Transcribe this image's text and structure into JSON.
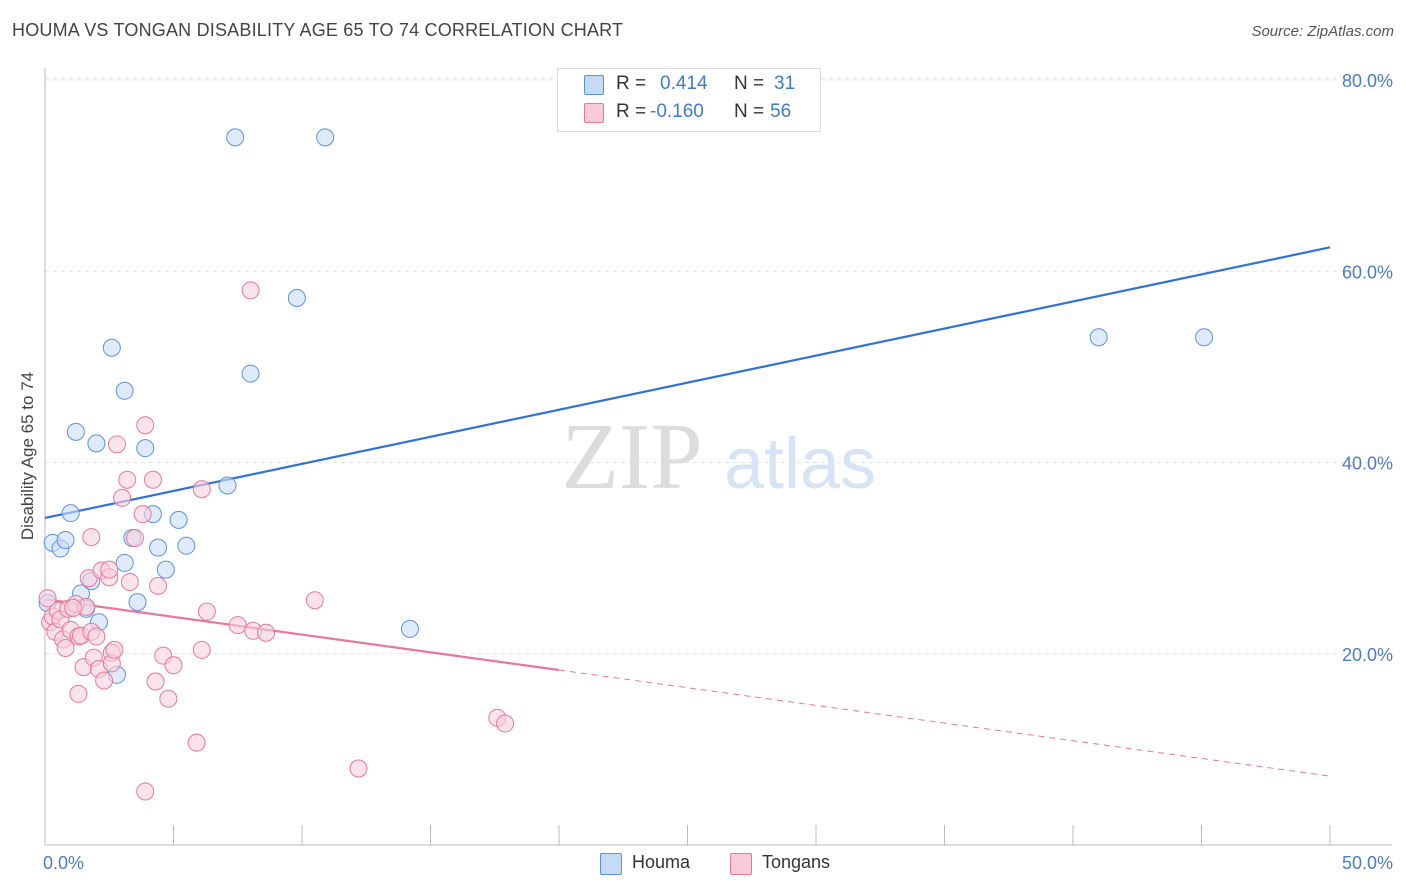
{
  "header": {
    "title": "HOUMA VS TONGAN DISABILITY AGE 65 TO 74 CORRELATION CHART",
    "source": "Source: ZipAtlas.com"
  },
  "watermark": {
    "zip": "ZIP",
    "atlas": "atlas"
  },
  "legend": {
    "rows": [
      {
        "r_label": "R =",
        "r_value": "0.414",
        "n_label": "N =",
        "n_value": "31",
        "color": "#a9c8f0"
      },
      {
        "r_label": "R =",
        "r_value": "-0.160",
        "n_label": "N =",
        "n_value": "56",
        "color": "#f6b7c9"
      }
    ]
  },
  "bottom_legend": {
    "houma": "Houma",
    "tongans": "Tongans"
  },
  "chart_data": {
    "type": "scatter",
    "title": "HOUMA VS TONGAN DISABILITY AGE 65 TO 74 CORRELATION CHART",
    "xlabel": "",
    "ylabel": "Disability Age 65 to 74",
    "xlim": [
      0,
      50
    ],
    "ylim": [
      0,
      80
    ],
    "x_tick_labels": [
      "0.0%",
      "50.0%"
    ],
    "y_ticks": [
      20,
      40,
      60,
      80
    ],
    "y_tick_labels": [
      "20.0%",
      "40.0%",
      "60.0%",
      "80.0%"
    ],
    "series": [
      {
        "name": "Houma",
        "color": "#5b93e0",
        "fill": "#c9ddf6",
        "points": [
          [
            0.1,
            25.3
          ],
          [
            0.3,
            31.6
          ],
          [
            0.6,
            31.0
          ],
          [
            0.8,
            31.9
          ],
          [
            1.0,
            34.7
          ],
          [
            1.2,
            43.2
          ],
          [
            1.4,
            26.3
          ],
          [
            1.6,
            24.7
          ],
          [
            1.8,
            27.6
          ],
          [
            2.0,
            42.0
          ],
          [
            2.1,
            23.3
          ],
          [
            2.6,
            52.0
          ],
          [
            2.8,
            17.8
          ],
          [
            3.1,
            47.5
          ],
          [
            3.1,
            29.5
          ],
          [
            3.4,
            32.1
          ],
          [
            3.6,
            25.4
          ],
          [
            3.9,
            41.5
          ],
          [
            4.2,
            34.6
          ],
          [
            4.4,
            31.1
          ],
          [
            4.7,
            28.8
          ],
          [
            5.2,
            34.0
          ],
          [
            5.5,
            31.3
          ],
          [
            7.1,
            37.6
          ],
          [
            7.4,
            74.0
          ],
          [
            8.0,
            49.3
          ],
          [
            9.8,
            57.2
          ],
          [
            10.9,
            74.0
          ],
          [
            14.2,
            22.6
          ],
          [
            41.0,
            53.1
          ],
          [
            45.1,
            53.1
          ]
        ]
      },
      {
        "name": "Tongans",
        "color": "#e8779b",
        "fill": "#f9d0dc",
        "points": [
          [
            0.2,
            23.3
          ],
          [
            0.3,
            23.9
          ],
          [
            0.4,
            22.3
          ],
          [
            0.5,
            24.5
          ],
          [
            0.6,
            23.6
          ],
          [
            0.7,
            21.5
          ],
          [
            0.8,
            20.6
          ],
          [
            0.9,
            24.7
          ],
          [
            1.0,
            22.5
          ],
          [
            1.2,
            25.2
          ],
          [
            1.3,
            21.8
          ],
          [
            1.3,
            15.8
          ],
          [
            1.4,
            21.9
          ],
          [
            1.5,
            18.6
          ],
          [
            1.6,
            24.9
          ],
          [
            1.7,
            27.9
          ],
          [
            1.8,
            22.3
          ],
          [
            1.8,
            32.2
          ],
          [
            1.9,
            19.6
          ],
          [
            2.0,
            21.8
          ],
          [
            2.1,
            18.4
          ],
          [
            2.2,
            28.7
          ],
          [
            2.3,
            17.2
          ],
          [
            2.5,
            28.0
          ],
          [
            2.5,
            28.8
          ],
          [
            2.6,
            20.1
          ],
          [
            2.6,
            19.0
          ],
          [
            2.7,
            20.4
          ],
          [
            2.8,
            41.9
          ],
          [
            3.0,
            36.3
          ],
          [
            3.2,
            38.2
          ],
          [
            3.3,
            27.5
          ],
          [
            3.5,
            32.1
          ],
          [
            3.8,
            34.6
          ],
          [
            3.9,
            43.9
          ],
          [
            3.9,
            5.6
          ],
          [
            4.2,
            38.2
          ],
          [
            4.3,
            17.1
          ],
          [
            4.4,
            27.1
          ],
          [
            4.6,
            19.8
          ],
          [
            4.8,
            15.3
          ],
          [
            5.0,
            18.8
          ],
          [
            5.9,
            10.7
          ],
          [
            6.1,
            20.4
          ],
          [
            6.1,
            37.2
          ],
          [
            6.3,
            24.4
          ],
          [
            7.5,
            23.0
          ],
          [
            8.0,
            58.0
          ],
          [
            8.1,
            22.4
          ],
          [
            8.6,
            22.2
          ],
          [
            10.5,
            25.6
          ],
          [
            12.2,
            8.0
          ],
          [
            17.6,
            13.3
          ],
          [
            17.9,
            12.7
          ],
          [
            0.1,
            25.8
          ],
          [
            1.1,
            24.8
          ]
        ]
      }
    ],
    "trend_lines": [
      {
        "series": "Houma",
        "x1": 0,
        "y1": 34.2,
        "x2": 50,
        "y2": 62.5,
        "style": "solid"
      },
      {
        "series": "Tongans",
        "x1": 0,
        "y1": 25.7,
        "x2": 20,
        "y2": 18.3,
        "style": "solid"
      },
      {
        "series": "Tongans",
        "x1": 20,
        "y1": 18.3,
        "x2": 50,
        "y2": 7.2,
        "style": "dashed"
      }
    ]
  }
}
